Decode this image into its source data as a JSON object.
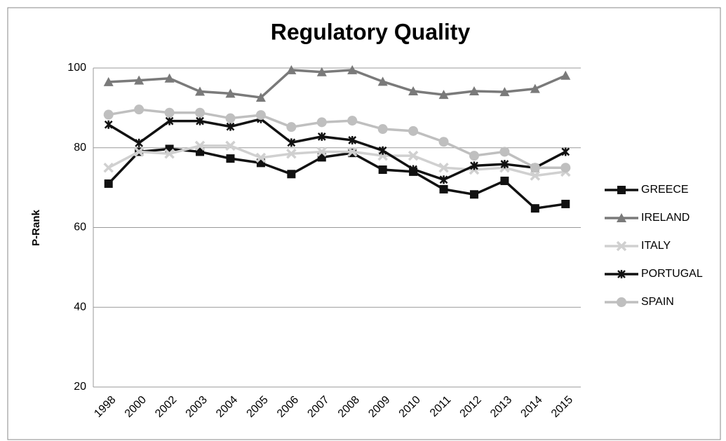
{
  "chart_data": {
    "type": "line",
    "title": "Regulatory Quality",
    "ylabel": "P-Rank",
    "categories": [
      "1998",
      "2000",
      "2002",
      "2003",
      "2004",
      "2005",
      "2006",
      "2007",
      "2008",
      "2009",
      "2010",
      "2011",
      "2012",
      "2013",
      "2014",
      "2015"
    ],
    "series": [
      {
        "name": "GREECE",
        "color": "#111111",
        "marker": "square",
        "values": [
          71,
          79,
          79.7,
          79,
          77.3,
          76.2,
          73.4,
          77.6,
          78.7,
          74.5,
          74,
          69.6,
          68.3,
          71.7,
          64.8,
          65.9
        ]
      },
      {
        "name": "IRELAND",
        "color": "#7a7a7a",
        "marker": "triangle",
        "values": [
          96.5,
          96.9,
          97.4,
          94.1,
          93.6,
          92.6,
          99.5,
          99,
          99.5,
          96.6,
          94.2,
          93.3,
          94.2,
          94,
          94.8,
          98.1
        ]
      },
      {
        "name": "ITALY",
        "color": "#d0d0d0",
        "marker": "x",
        "values": [
          75,
          79,
          78.5,
          80.5,
          80.5,
          77.5,
          78.5,
          79,
          79,
          78,
          78,
          75,
          74.5,
          75,
          73,
          74
        ]
      },
      {
        "name": "PORTUGAL",
        "color": "#111111",
        "marker": "star",
        "values": [
          85.8,
          81.2,
          86.7,
          86.7,
          85.3,
          87.2,
          81.3,
          82.8,
          81.9,
          79.3,
          74.6,
          72,
          75.5,
          75.9,
          75,
          79
        ]
      },
      {
        "name": "SPAIN",
        "color": "#bfbfbf",
        "marker": "circle",
        "values": [
          88.3,
          89.6,
          88.8,
          88.8,
          87.4,
          88.2,
          85.2,
          86.4,
          86.8,
          84.7,
          84.2,
          81.5,
          78,
          79,
          75,
          75
        ]
      }
    ],
    "ylim": [
      20,
      100
    ],
    "yticks": [
      20,
      40,
      60,
      80,
      100
    ],
    "grid": true,
    "legend": "right"
  }
}
